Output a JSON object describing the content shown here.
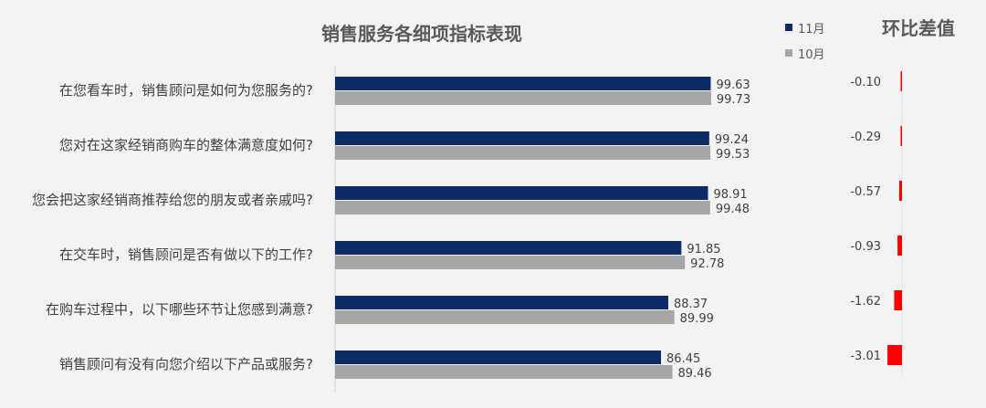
{
  "chart_data": {
    "type": "bar",
    "orientation": "horizontal",
    "title": "销售服务各细项指标表现",
    "categories": [
      "在您看车时，销售顾问是如何为您服务的?",
      "您对在这家经销商购车的整体满意度如何?",
      "您会把这家经销商推荐给您的朋友或者亲戚吗?",
      "在交车时，销售顾问是否有做以下的工作?",
      "在购车过程中，以下哪些环节让您感到满意?",
      "销售顾问有没有向您介绍以下产品或服务?"
    ],
    "series": [
      {
        "name": "11月",
        "color": "#0d2b64",
        "values": [
          99.63,
          99.24,
          98.91,
          91.85,
          88.37,
          86.45
        ]
      },
      {
        "name": "10月",
        "color": "#a6a6a6",
        "values": [
          99.73,
          99.53,
          99.48,
          92.78,
          89.99,
          89.46
        ]
      }
    ],
    "value_labels": {
      "11月": [
        "99.63",
        "99.24",
        "98.91",
        "91.85",
        "88.37",
        "86.45"
      ],
      "10月": [
        "99.73",
        "99.53",
        "99.48",
        "92.78",
        "89.99",
        "89.46"
      ]
    },
    "legend_position": "top-right",
    "grid": false,
    "diff_panel": {
      "title": "环比差值",
      "values": [
        -0.1,
        -0.29,
        -0.57,
        -0.93,
        -1.62,
        -3.01
      ],
      "labels": [
        "-0.10",
        "-0.29",
        "-0.57",
        "-0.93",
        "-1.62",
        "-3.01"
      ],
      "color": "#ff0000"
    }
  }
}
